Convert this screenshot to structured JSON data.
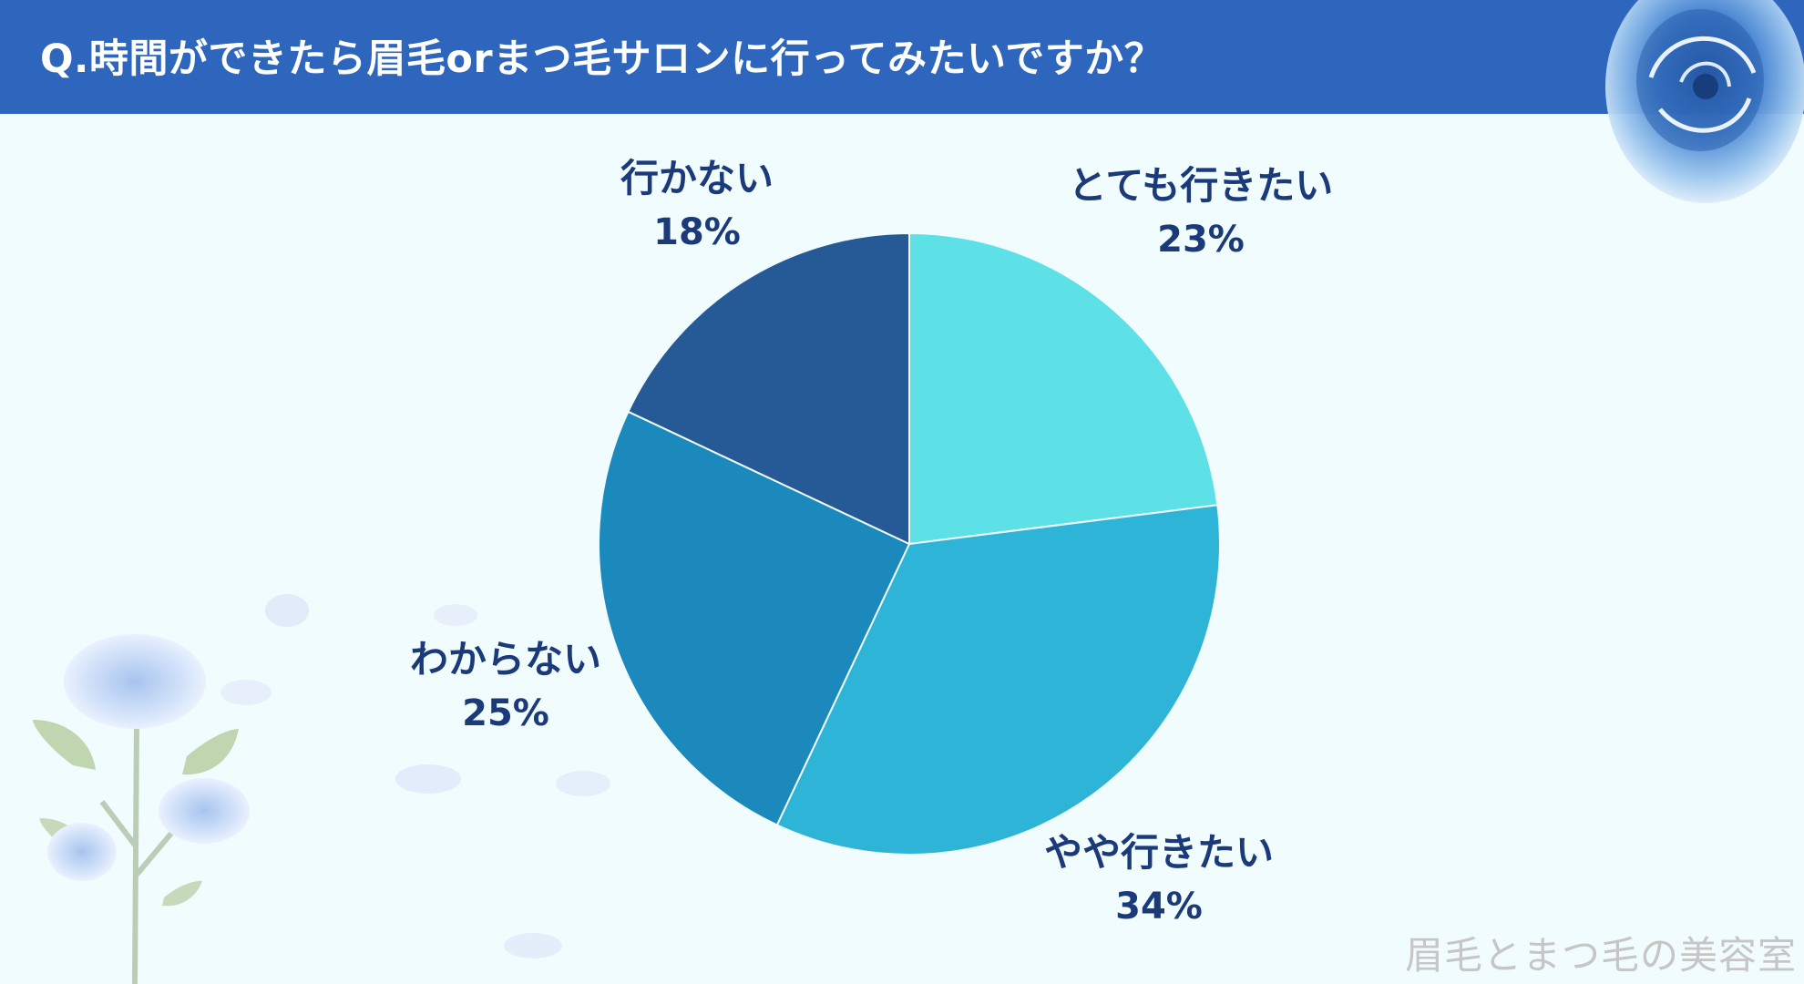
{
  "header": {
    "title": "Q.時間ができたら眉毛orまつ毛サロンに行ってみたいですか？"
  },
  "chart_data": {
    "type": "pie",
    "title": "Q.時間ができたら眉毛orまつ毛サロンに行ってみたいですか？",
    "slices": [
      {
        "label": "とても行きたい",
        "value": 23,
        "value_label": "23%",
        "color": "#5de0e6"
      },
      {
        "label": "やや行きたい",
        "value": 34,
        "value_label": "34%",
        "color": "#2eb4d6"
      },
      {
        "label": "わからない",
        "value": 25,
        "value_label": "25%",
        "color": "#1b89bb"
      },
      {
        "label": "行かない",
        "value": 18,
        "value_label": "18%",
        "color": "#265a96"
      }
    ],
    "start": "12 o'clock",
    "direction": "clockwise",
    "legend": "none"
  },
  "watermark": {
    "text": "眉毛とまつ毛の美容室"
  },
  "colors": {
    "header_bg": "#2e66be",
    "page_bg": "#f1fcfe",
    "label_text": "#1b3a7a"
  },
  "decorations": {
    "top_right": "blue-rose-icon",
    "bottom_left": "blue-rose-branch-icon"
  }
}
